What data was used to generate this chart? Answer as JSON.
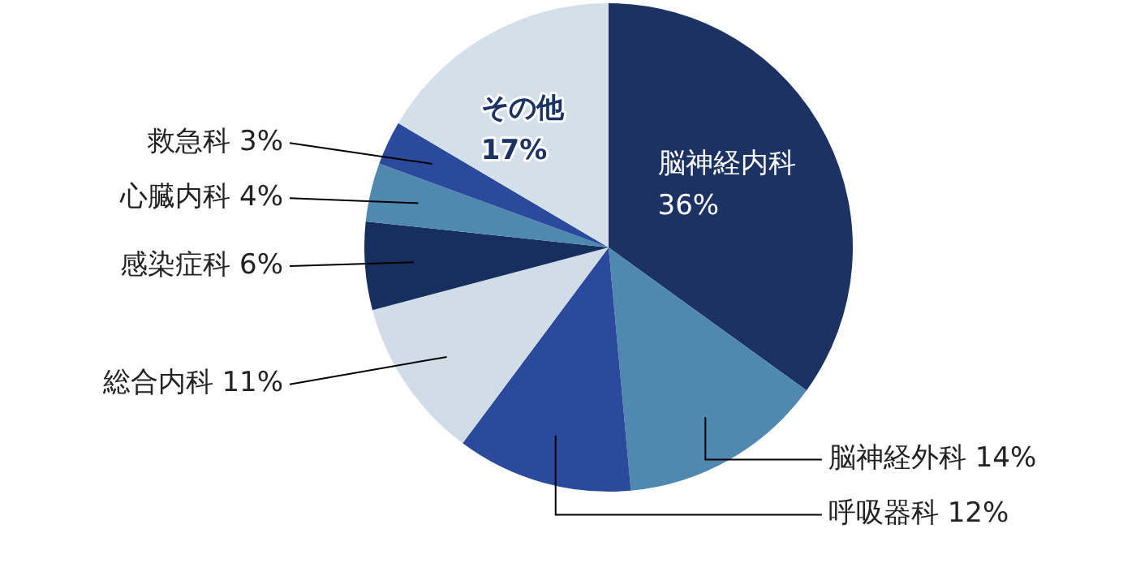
{
  "chart_data": {
    "type": "pie",
    "categories": [
      "脳神経内科",
      "脳神経外科",
      "呼吸器科",
      "総合内科",
      "感染症科",
      "心臓内科",
      "救急科",
      "その他"
    ],
    "values": [
      36,
      14,
      12,
      11,
      6,
      4,
      3,
      17
    ],
    "value_labels": [
      "36%",
      "14%",
      "12%",
      "11%",
      "6%",
      "4%",
      "3%",
      "17%"
    ],
    "colors": [
      "#1b3263",
      "#4f88b0",
      "#2b4a9c",
      "#d0dde8",
      "#172f5e",
      "#5089b0",
      "#2b4a9c",
      "#d3dfe9"
    ],
    "legend": false
  }
}
